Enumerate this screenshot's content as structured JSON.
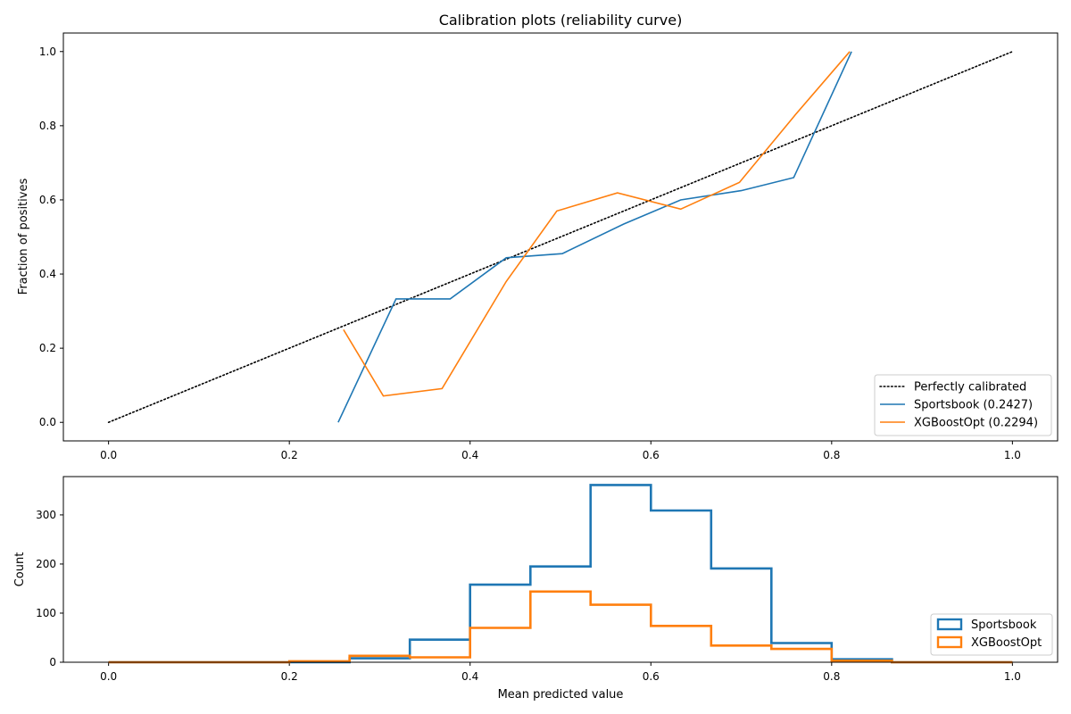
{
  "chart_data": [
    {
      "type": "line",
      "title": "Calibration plots  (reliability curve)",
      "xlabel": "",
      "ylabel": "Fraction of positives",
      "xlim": [
        -0.05,
        1.05
      ],
      "ylim": [
        -0.05,
        1.05
      ],
      "xticks": [
        0.0,
        0.2,
        0.4,
        0.6,
        0.8,
        1.0
      ],
      "xtick_labels": [
        "0.0",
        "0.2",
        "0.4",
        "0.6",
        "0.8",
        "1.0"
      ],
      "yticks": [
        0.0,
        0.2,
        0.4,
        0.6,
        0.8,
        1.0
      ],
      "ytick_labels": [
        "0.0",
        "0.2",
        "0.4",
        "0.6",
        "0.8",
        "1.0"
      ],
      "grid": false,
      "legend_position": "lower-right",
      "series": [
        {
          "name": "Perfectly calibrated",
          "style": "dotted",
          "color": "#000000",
          "x": [
            0.0,
            1.0
          ],
          "y": [
            0.0,
            1.0
          ]
        },
        {
          "name": "Sportsbook (0.2427)",
          "style": "solid",
          "color": "#1f77b4",
          "x": [
            0.254,
            0.318,
            0.378,
            0.44,
            0.502,
            0.57,
            0.633,
            0.7,
            0.758,
            0.822
          ],
          "y": [
            0.0,
            0.333,
            0.333,
            0.444,
            0.455,
            0.535,
            0.6,
            0.625,
            0.66,
            1.0
          ]
        },
        {
          "name": "XGBoostOpt (0.2294)",
          "style": "solid",
          "color": "#ff7f0e",
          "x": [
            0.26,
            0.304,
            0.369,
            0.44,
            0.496,
            0.563,
            0.633,
            0.698,
            0.76,
            0.82
          ],
          "y": [
            0.25,
            0.071,
            0.091,
            0.38,
            0.57,
            0.619,
            0.575,
            0.647,
            0.83,
            1.0
          ]
        }
      ]
    },
    {
      "type": "histogram",
      "title": "",
      "xlabel": "Mean predicted value",
      "ylabel": "Count",
      "xlim": [
        -0.05,
        1.05
      ],
      "ylim": [
        0,
        378
      ],
      "xticks": [
        0.0,
        0.2,
        0.4,
        0.6,
        0.8,
        1.0
      ],
      "xtick_labels": [
        "0.0",
        "0.2",
        "0.4",
        "0.6",
        "0.8",
        "1.0"
      ],
      "yticks": [
        0,
        100,
        200,
        300
      ],
      "ytick_labels": [
        "0",
        "100",
        "200",
        "300"
      ],
      "grid": false,
      "legend_position": "lower-right",
      "bin_edges": [
        0.0,
        0.0667,
        0.1333,
        0.2,
        0.2667,
        0.3333,
        0.4,
        0.4667,
        0.5333,
        0.6,
        0.6667,
        0.7333,
        0.8,
        0.8667,
        0.9333,
        1.0
      ],
      "series": [
        {
          "name": "Sportsbook",
          "color": "#1f77b4",
          "values": [
            0,
            0,
            0,
            0,
            8,
            46,
            158,
            195,
            361,
            309,
            191,
            39,
            6,
            0,
            0
          ]
        },
        {
          "name": "XGBoostOpt",
          "color": "#ff7f0e",
          "values": [
            0,
            0,
            0,
            2,
            13,
            10,
            70,
            144,
            117,
            74,
            34,
            27,
            3,
            0,
            0
          ]
        }
      ]
    }
  ]
}
